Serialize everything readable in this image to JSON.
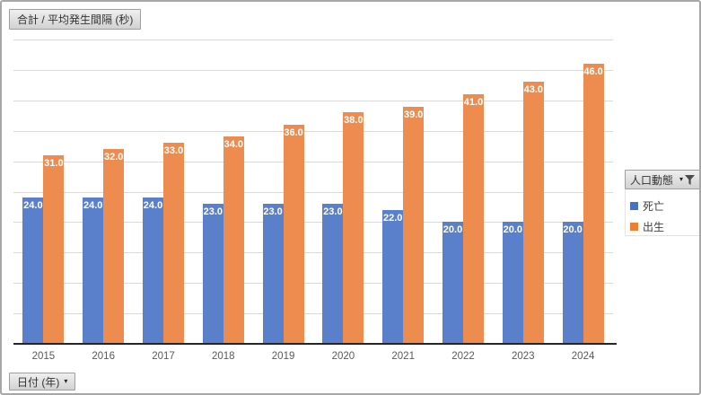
{
  "value_field_button": {
    "label": "合計 / 平均発生間隔 (秒)"
  },
  "legend_field_button": {
    "label": "人口動態",
    "dropdown_icon": "▾"
  },
  "axis_field_button": {
    "label": "日付 (年)",
    "dropdown_icon": "▾"
  },
  "legend": {
    "items": [
      {
        "label": "死亡",
        "color": "#4472C4"
      },
      {
        "label": "出生",
        "color": "#ED7D31"
      }
    ]
  },
  "chart_data": {
    "type": "bar",
    "title": "合計 / 平均発生間隔 (秒)",
    "categories": [
      "2015",
      "2016",
      "2017",
      "2018",
      "2019",
      "2020",
      "2021",
      "2022",
      "2023",
      "2024"
    ],
    "series": [
      {
        "name": "死亡",
        "color": "#5B80CB",
        "values": [
          24.0,
          24.0,
          24.0,
          23.0,
          23.0,
          23.0,
          22.0,
          20.0,
          20.0,
          20.0
        ]
      },
      {
        "name": "出生",
        "color": "#EE8C50",
        "values": [
          31.0,
          32.0,
          33.0,
          34.0,
          36.0,
          38.0,
          39.0,
          41.0,
          43.0,
          46.0
        ]
      }
    ],
    "data_labels": {
      "position": "inside_end",
      "color": "#FFFFFF",
      "decimals": 1
    },
    "xlabel": "日付 (年)",
    "ylabel": "合計 / 平均発生間隔 (秒)",
    "ylim": [
      0,
      50
    ],
    "grid_interval": 5,
    "grid": true,
    "gridline_color": "#D9D9D9",
    "axis_line_color": "#262626",
    "tick_label_color": "#595959",
    "legend_position": "right"
  }
}
